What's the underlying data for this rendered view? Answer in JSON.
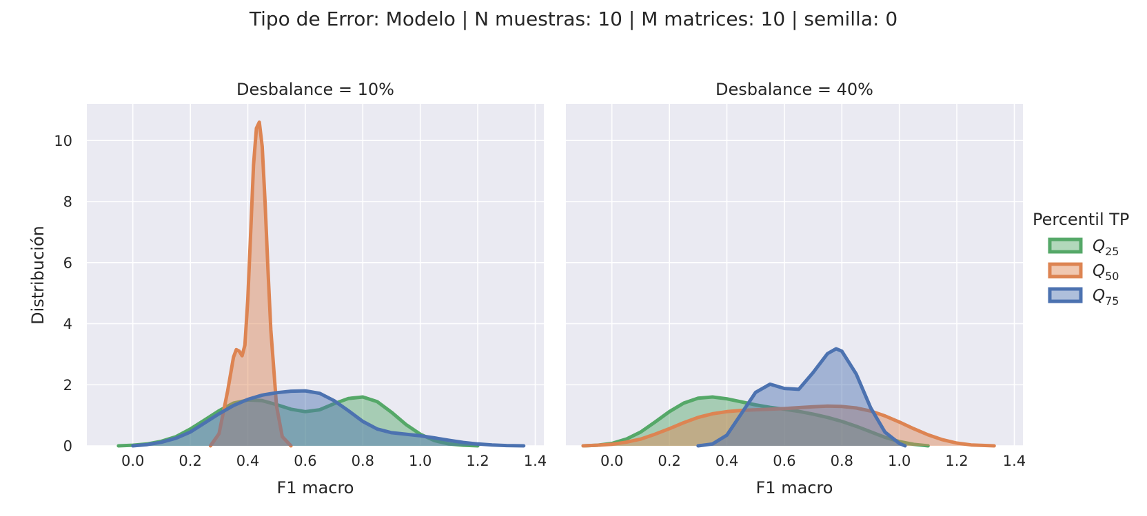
{
  "chart_data": {
    "type": "area",
    "suptitle": "Tipo de Error: Modelo | N muestras: 10 | M matrices: 10 | semilla: 0",
    "ylabel": "Distribución",
    "xlabel": "F1 macro",
    "xlim": [
      -0.16,
      1.43
    ],
    "ylim": [
      0,
      11.2
    ],
    "xticks": [
      "0.0",
      "0.2",
      "0.4",
      "0.6",
      "0.8",
      "1.0",
      "1.2",
      "1.4"
    ],
    "yticks": [
      "0",
      "2",
      "4",
      "6",
      "8",
      "10"
    ],
    "grid": true,
    "legend": {
      "title": "Percentil TP",
      "placement": "right",
      "entries": [
        {
          "base": "Q",
          "sub": "25",
          "color": "#55a868"
        },
        {
          "base": "Q",
          "sub": "50",
          "color": "#dd8452"
        },
        {
          "base": "Q",
          "sub": "75",
          "color": "#4c72b0"
        }
      ]
    },
    "panels": [
      {
        "title": "Desbalance = 10%",
        "series": [
          {
            "color": "#55a868",
            "x": [
              -0.05,
              0.0,
              0.05,
              0.1,
              0.15,
              0.2,
              0.25,
              0.3,
              0.35,
              0.4,
              0.45,
              0.5,
              0.55,
              0.6,
              0.65,
              0.7,
              0.75,
              0.8,
              0.85,
              0.9,
              0.95,
              1.0,
              1.05,
              1.1,
              1.15,
              1.2
            ],
            "y": [
              0.0,
              0.02,
              0.06,
              0.15,
              0.3,
              0.55,
              0.85,
              1.15,
              1.4,
              1.5,
              1.48,
              1.35,
              1.2,
              1.12,
              1.18,
              1.38,
              1.55,
              1.6,
              1.45,
              1.1,
              0.7,
              0.38,
              0.17,
              0.06,
              0.02,
              0.0
            ]
          },
          {
            "color": "#dd8452",
            "x": [
              0.27,
              0.3,
              0.33,
              0.35,
              0.36,
              0.37,
              0.38,
              0.39,
              0.4,
              0.41,
              0.42,
              0.43,
              0.44,
              0.45,
              0.46,
              0.47,
              0.48,
              0.5,
              0.52,
              0.55
            ],
            "y": [
              0.0,
              0.4,
              1.8,
              2.9,
              3.15,
              3.1,
              2.95,
              3.3,
              4.8,
              7.0,
              9.2,
              10.4,
              10.6,
              9.8,
              8.0,
              5.8,
              3.8,
              1.3,
              0.3,
              0.0
            ]
          },
          {
            "color": "#4c72b0",
            "x": [
              0.0,
              0.05,
              0.1,
              0.15,
              0.2,
              0.25,
              0.3,
              0.35,
              0.4,
              0.45,
              0.5,
              0.55,
              0.6,
              0.65,
              0.7,
              0.75,
              0.8,
              0.85,
              0.9,
              0.95,
              1.0,
              1.05,
              1.1,
              1.15,
              1.2,
              1.25,
              1.3,
              1.36
            ],
            "y": [
              0.0,
              0.04,
              0.12,
              0.25,
              0.45,
              0.75,
              1.05,
              1.32,
              1.52,
              1.66,
              1.74,
              1.79,
              1.8,
              1.72,
              1.48,
              1.15,
              0.8,
              0.55,
              0.43,
              0.38,
              0.33,
              0.26,
              0.18,
              0.11,
              0.06,
              0.03,
              0.01,
              0.0
            ]
          }
        ]
      },
      {
        "title": "Desbalance = 40%",
        "series": [
          {
            "color": "#55a868",
            "x": [
              -0.1,
              -0.05,
              0.0,
              0.05,
              0.1,
              0.15,
              0.2,
              0.25,
              0.3,
              0.35,
              0.4,
              0.45,
              0.5,
              0.55,
              0.6,
              0.65,
              0.7,
              0.75,
              0.8,
              0.85,
              0.9,
              0.95,
              1.0,
              1.05,
              1.1
            ],
            "y": [
              0.0,
              0.02,
              0.08,
              0.22,
              0.45,
              0.78,
              1.12,
              1.4,
              1.56,
              1.6,
              1.54,
              1.44,
              1.34,
              1.26,
              1.2,
              1.13,
              1.04,
              0.93,
              0.8,
              0.64,
              0.46,
              0.28,
              0.14,
              0.05,
              0.0
            ]
          },
          {
            "color": "#dd8452",
            "x": [
              -0.1,
              -0.05,
              0.0,
              0.05,
              0.1,
              0.15,
              0.2,
              0.25,
              0.3,
              0.35,
              0.4,
              0.45,
              0.5,
              0.55,
              0.6,
              0.65,
              0.7,
              0.75,
              0.8,
              0.85,
              0.9,
              0.95,
              1.0,
              1.05,
              1.1,
              1.15,
              1.2,
              1.25,
              1.33
            ],
            "y": [
              0.0,
              0.02,
              0.05,
              0.12,
              0.22,
              0.38,
              0.56,
              0.76,
              0.93,
              1.05,
              1.12,
              1.16,
              1.18,
              1.2,
              1.22,
              1.25,
              1.28,
              1.3,
              1.29,
              1.24,
              1.14,
              0.98,
              0.78,
              0.56,
              0.36,
              0.2,
              0.09,
              0.03,
              0.0
            ]
          },
          {
            "color": "#4c72b0",
            "x": [
              0.3,
              0.35,
              0.4,
              0.45,
              0.5,
              0.55,
              0.6,
              0.65,
              0.7,
              0.75,
              0.78,
              0.8,
              0.85,
              0.9,
              0.95,
              1.0,
              1.02
            ],
            "y": [
              0.0,
              0.06,
              0.35,
              1.05,
              1.75,
              2.02,
              1.88,
              1.85,
              2.4,
              3.02,
              3.18,
              3.1,
              2.35,
              1.25,
              0.45,
              0.08,
              0.0
            ]
          }
        ]
      }
    ]
  }
}
